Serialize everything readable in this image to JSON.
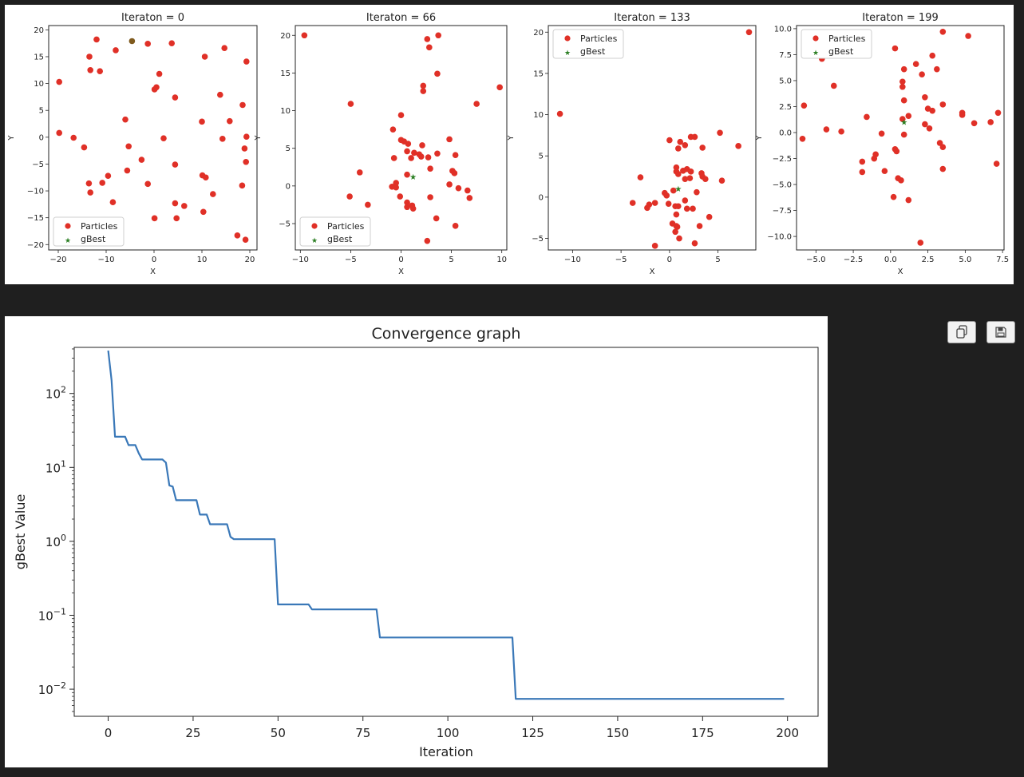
{
  "chart_data": [
    {
      "type": "scatter",
      "title": "Iteraton = 0",
      "xlabel": "X",
      "ylabel": "Y",
      "xlim": [
        -22,
        21.5
      ],
      "ylim": [
        -21,
        20.8
      ],
      "xticks": [
        -20,
        -10,
        0,
        10,
        20
      ],
      "yticks": [
        -20,
        -15,
        -10,
        -5,
        0,
        5,
        10,
        15,
        20
      ],
      "legend": {
        "position": "lower-left",
        "entries": [
          "Particles",
          "gBest"
        ]
      },
      "particles": [
        [
          -12,
          18.2
        ],
        [
          -8,
          16.2
        ],
        [
          -13.5,
          15
        ],
        [
          -13.3,
          12.5
        ],
        [
          -11.3,
          12.3
        ],
        [
          -19.8,
          10.3
        ],
        [
          -19.8,
          0.8
        ],
        [
          -16.8,
          -0.1
        ],
        [
          -14.6,
          -1.9
        ],
        [
          -13.6,
          -8.6
        ],
        [
          -13.3,
          -10.3
        ],
        [
          -10.8,
          -8.5
        ],
        [
          -9.6,
          -7.2
        ],
        [
          -8.6,
          -12.1
        ],
        [
          -6,
          3.3
        ],
        [
          -5.3,
          -1.7
        ],
        [
          -5.6,
          -6.2
        ],
        [
          -2.6,
          -4.2
        ],
        [
          -1.3,
          17.4
        ],
        [
          1.1,
          11.8
        ],
        [
          0.5,
          9.3
        ],
        [
          0.1,
          8.9
        ],
        [
          2,
          -0.2
        ],
        [
          -1.3,
          -8.7
        ],
        [
          0.1,
          -15.1
        ],
        [
          3.7,
          17.5
        ],
        [
          4.4,
          7.4
        ],
        [
          4.4,
          -5.1
        ],
        [
          4.4,
          -12.3
        ],
        [
          4.7,
          -15.1
        ],
        [
          6.3,
          -12.8
        ],
        [
          10.6,
          15
        ],
        [
          10,
          2.9
        ],
        [
          10.1,
          -7.1
        ],
        [
          10.8,
          -7.5
        ],
        [
          12.3,
          -10.6
        ],
        [
          10.3,
          -13.9
        ],
        [
          14.7,
          16.6
        ],
        [
          13.8,
          7.9
        ],
        [
          15.8,
          3
        ],
        [
          14.3,
          -0.3
        ],
        [
          18.5,
          6
        ],
        [
          19.3,
          14.1
        ],
        [
          19.3,
          0.1
        ],
        [
          18.9,
          -2.1
        ],
        [
          19.2,
          -4.6
        ],
        [
          18.4,
          -9
        ],
        [
          17.4,
          -18.3
        ],
        [
          19.1,
          -19.1
        ]
      ],
      "gbest": [
        -4.6,
        17.9
      ]
    },
    {
      "type": "scatter",
      "title": "Iteraton = 66",
      "xlabel": "X",
      "ylabel": "Y",
      "xlim": [
        -10.5,
        10.5
      ],
      "ylim": [
        -8.5,
        21.3
      ],
      "xticks": [
        -10,
        -5,
        0,
        5,
        10
      ],
      "yticks": [
        -5,
        0,
        5,
        10,
        15,
        20
      ],
      "legend": {
        "position": "lower-left",
        "entries": [
          "Particles",
          "gBest"
        ]
      },
      "particles": [
        [
          -9.6,
          20
        ],
        [
          2.6,
          19.5
        ],
        [
          3.7,
          20
        ],
        [
          2.8,
          18.4
        ],
        [
          9.8,
          13.1
        ],
        [
          3.6,
          14.9
        ],
        [
          2.2,
          13.3
        ],
        [
          2.2,
          12.6
        ],
        [
          7.5,
          10.9
        ],
        [
          -5,
          10.9
        ],
        [
          0,
          9.4
        ],
        [
          -0.8,
          7.5
        ],
        [
          0,
          6.1
        ],
        [
          0.3,
          5.9
        ],
        [
          0.7,
          5.6
        ],
        [
          2.1,
          5.4
        ],
        [
          4.8,
          6.2
        ],
        [
          3.6,
          4.3
        ],
        [
          0.6,
          4.6
        ],
        [
          1.3,
          4.4
        ],
        [
          1.8,
          4.2
        ],
        [
          2,
          3.9
        ],
        [
          2.7,
          3.8
        ],
        [
          5.4,
          4.1
        ],
        [
          -0.7,
          3.7
        ],
        [
          1,
          3.7
        ],
        [
          2.9,
          2.3
        ],
        [
          5.1,
          2
        ],
        [
          5.3,
          1.7
        ],
        [
          0.6,
          1.5
        ],
        [
          -4.1,
          1.8
        ],
        [
          -0.5,
          0.4
        ],
        [
          -0.5,
          -0.2
        ],
        [
          -0.9,
          -0.1
        ],
        [
          4.8,
          0.2
        ],
        [
          5.7,
          -0.3
        ],
        [
          6.6,
          -0.6
        ],
        [
          -0.1,
          -1.4
        ],
        [
          -5.1,
          -1.4
        ],
        [
          2.9,
          -1.5
        ],
        [
          6.8,
          -1.6
        ],
        [
          -3.3,
          -2.5
        ],
        [
          0.6,
          -2.2
        ],
        [
          0.6,
          -2.8
        ],
        [
          1.1,
          -2.6
        ],
        [
          1.2,
          -3
        ],
        [
          3.5,
          -4.3
        ],
        [
          5.4,
          -5.3
        ],
        [
          2.6,
          -7.3
        ]
      ],
      "gbest": [
        1.2,
        1.2
      ]
    },
    {
      "type": "scatter",
      "title": "Iteraton = 133",
      "xlabel": "X",
      "ylabel": "Y",
      "xlim": [
        -12.5,
        8.9
      ],
      "ylim": [
        -6.4,
        20.8
      ],
      "xticks": [
        -10,
        -5,
        0,
        5
      ],
      "yticks": [
        -5,
        0,
        5,
        10,
        15,
        20
      ],
      "legend": {
        "position": "upper-left",
        "entries": [
          "Particles",
          "gBest"
        ]
      },
      "particles": [
        [
          8.2,
          20
        ],
        [
          -11.3,
          10.1
        ],
        [
          0,
          6.9
        ],
        [
          1.1,
          6.7
        ],
        [
          2.2,
          7.3
        ],
        [
          2.6,
          7.3
        ],
        [
          1.6,
          6.3
        ],
        [
          0.9,
          5.9
        ],
        [
          3.4,
          6
        ],
        [
          5.2,
          7.8
        ],
        [
          7.1,
          6.2
        ],
        [
          0.7,
          3.6
        ],
        [
          1.4,
          3.2
        ],
        [
          1.8,
          3.4
        ],
        [
          2.2,
          3.1
        ],
        [
          0.7,
          3.1
        ],
        [
          3.3,
          2.9
        ],
        [
          3.4,
          2.5
        ],
        [
          3.7,
          2.2
        ],
        [
          5.4,
          2
        ],
        [
          1.6,
          2.2
        ],
        [
          2.1,
          2.3
        ],
        [
          -3,
          2.4
        ],
        [
          0.9,
          2.8
        ],
        [
          0.4,
          0.8
        ],
        [
          -0.5,
          0.5
        ],
        [
          -0.3,
          0.2
        ],
        [
          2.8,
          0.6
        ],
        [
          1.6,
          -0.4
        ],
        [
          -3.8,
          -0.7
        ],
        [
          -2.1,
          -0.9
        ],
        [
          -1.5,
          -0.7
        ],
        [
          -0.1,
          -0.8
        ],
        [
          0.6,
          -1.1
        ],
        [
          0.9,
          -1.1
        ],
        [
          1.8,
          -1.4
        ],
        [
          2.4,
          -1.4
        ],
        [
          -2.3,
          -1.3
        ],
        [
          0.7,
          -2.1
        ],
        [
          4.1,
          -2.4
        ],
        [
          0.3,
          -3.2
        ],
        [
          0.7,
          -3.5
        ],
        [
          0.8,
          -3.6
        ],
        [
          3.1,
          -3.5
        ],
        [
          0.6,
          -4.2
        ],
        [
          1,
          -5
        ],
        [
          2.6,
          -5.6
        ],
        [
          -1.5,
          -5.9
        ]
      ],
      "gbest": [
        0.9,
        1
      ]
    },
    {
      "type": "scatter",
      "title": "Iteraton = 199",
      "xlabel": "X",
      "ylabel": "Y",
      "xlim": [
        -6.3,
        7.6
      ],
      "ylim": [
        -11.3,
        10.3
      ],
      "xticks": [
        -5,
        -2.5,
        0,
        2.5,
        5,
        7.5
      ],
      "xticklabels": [
        "−5.0",
        "−2.5",
        "0.0",
        "2.5",
        "5.0",
        "7.5"
      ],
      "yticks": [
        -10,
        -7.5,
        -5,
        -2.5,
        0,
        2.5,
        5,
        7.5,
        10
      ],
      "yticklabels": [
        "−10.0",
        "−7.5",
        "−5.0",
        "−2.5",
        "0.0",
        "2.5",
        "5.0",
        "7.5",
        "10.0"
      ],
      "legend": {
        "position": "upper-left",
        "entries": [
          "Particles",
          "gBest"
        ]
      },
      "particles": [
        [
          3.5,
          9.7
        ],
        [
          5.2,
          9.3
        ],
        [
          0.3,
          8.1
        ],
        [
          2.8,
          7.4
        ],
        [
          -4.6,
          7.1
        ],
        [
          1.7,
          6.6
        ],
        [
          3.1,
          6.1
        ],
        [
          0.9,
          6.1
        ],
        [
          2.1,
          5.6
        ],
        [
          0.8,
          4.9
        ],
        [
          0.8,
          4.4
        ],
        [
          -3.8,
          4.5
        ],
        [
          2.3,
          3.4
        ],
        [
          0.9,
          3.1
        ],
        [
          3.5,
          2.7
        ],
        [
          -5.8,
          2.6
        ],
        [
          2.5,
          2.3
        ],
        [
          2.8,
          2.1
        ],
        [
          4.8,
          1.9
        ],
        [
          7.2,
          1.9
        ],
        [
          4.8,
          1.7
        ],
        [
          1.2,
          1.6
        ],
        [
          -1.6,
          1.5
        ],
        [
          0.8,
          1.3
        ],
        [
          5.6,
          0.9
        ],
        [
          6.7,
          1
        ],
        [
          2.3,
          0.8
        ],
        [
          2.6,
          0.4
        ],
        [
          -4.3,
          0.3
        ],
        [
          -3.3,
          0.1
        ],
        [
          -0.6,
          -0.1
        ],
        [
          0.9,
          -0.2
        ],
        [
          -5.9,
          -0.6
        ],
        [
          3.3,
          -1
        ],
        [
          3.5,
          -1.4
        ],
        [
          0.3,
          -1.6
        ],
        [
          0.4,
          -1.8
        ],
        [
          -1,
          -2.1
        ],
        [
          -1.1,
          -2.5
        ],
        [
          -1.9,
          -2.8
        ],
        [
          7.1,
          -3
        ],
        [
          3.5,
          -3.5
        ],
        [
          -0.4,
          -3.7
        ],
        [
          -1.9,
          -3.8
        ],
        [
          0.5,
          -4.4
        ],
        [
          0.7,
          -4.6
        ],
        [
          0.2,
          -6.2
        ],
        [
          1.2,
          -6.5
        ],
        [
          2,
          -10.6
        ]
      ],
      "gbest": [
        0.9,
        1
      ]
    },
    {
      "type": "line",
      "title": "Convergence graph",
      "xlabel": "Iteration",
      "ylabel": "gBest Value",
      "yscale": "log",
      "xlim": [
        -10,
        209
      ],
      "ylim": [
        0.0043,
        420
      ],
      "xticks": [
        0,
        25,
        50,
        75,
        100,
        125,
        150,
        175,
        200
      ],
      "yticks_major": [
        0.01,
        0.1,
        1,
        10,
        100
      ],
      "yticklabels": [
        [
          "10",
          "−2"
        ],
        [
          "10",
          "−1"
        ],
        [
          "10",
          "0"
        ],
        [
          "10",
          "1"
        ],
        [
          "10",
          "2"
        ]
      ],
      "series": [
        {
          "name": "gBest",
          "color": "#3a78b8",
          "points": [
            [
              0,
              380
            ],
            [
              1,
              150
            ],
            [
              2,
              26
            ],
            [
              5,
              26
            ],
            [
              6,
              20
            ],
            [
              8,
              20
            ],
            [
              9,
              15.5
            ],
            [
              10,
              12.8
            ],
            [
              16,
              12.8
            ],
            [
              17,
              11.6
            ],
            [
              18,
              5.7
            ],
            [
              19,
              5.5
            ],
            [
              20,
              3.6
            ],
            [
              26,
              3.6
            ],
            [
              27,
              2.3
            ],
            [
              29,
              2.3
            ],
            [
              30,
              1.7
            ],
            [
              35,
              1.7
            ],
            [
              36,
              1.15
            ],
            [
              37,
              1.07
            ],
            [
              49,
              1.07
            ],
            [
              50,
              0.14
            ],
            [
              59,
              0.14
            ],
            [
              60,
              0.12
            ],
            [
              79,
              0.12
            ],
            [
              80,
              0.05
            ],
            [
              119,
              0.05
            ],
            [
              120,
              0.0074
            ],
            [
              199,
              0.0074
            ]
          ]
        }
      ]
    }
  ],
  "colors": {
    "particles": "#e03027",
    "gbest": "#2a7e22",
    "gbest_initial": "#7f5a1e",
    "line": "#3a78b8"
  },
  "toolbar": {
    "copy_icon": "copy-icon",
    "save_icon": "save-icon"
  }
}
